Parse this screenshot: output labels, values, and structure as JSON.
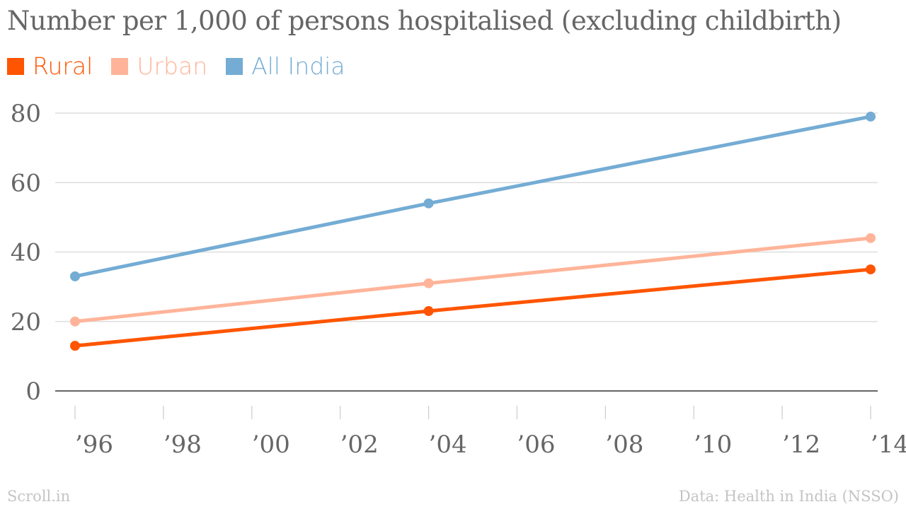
{
  "chart_data": {
    "type": "line",
    "title": "Number per 1,000 of persons hospitalised (excluding childbirth)",
    "x": [
      1996,
      2004,
      2014
    ],
    "x_tick_values": [
      1996,
      1998,
      2000,
      2002,
      2004,
      2006,
      2008,
      2010,
      2012,
      2014
    ],
    "x_tick_labels": [
      "’96",
      "’98",
      "’00",
      "’02",
      "’04",
      "’06",
      "’08",
      "’10",
      "’12",
      "’14"
    ],
    "y_ticks": [
      0,
      20,
      40,
      60,
      80
    ],
    "ylim": [
      0,
      80
    ],
    "xlim": [
      1996,
      2014
    ],
    "grid": true,
    "legend_position": "top-left",
    "series": [
      {
        "name": "Rural",
        "color": "#ff5500",
        "values": [
          13,
          23,
          35
        ]
      },
      {
        "name": "Urban",
        "color": "#ffb499",
        "values": [
          20,
          31,
          44
        ]
      },
      {
        "name": "All India",
        "color": "#74acd4",
        "values": [
          33,
          54,
          79
        ]
      }
    ]
  },
  "footer": {
    "source_brand": "Scroll.in",
    "data_source": "Data: Health in India (NSSO)"
  }
}
